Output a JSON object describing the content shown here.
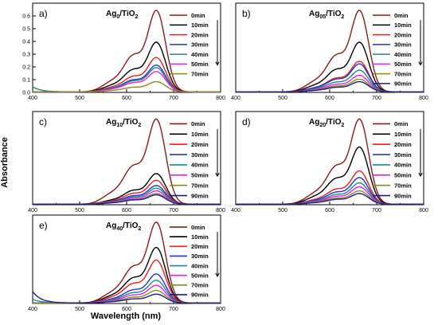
{
  "figure": {
    "ylabel": "Absorbance",
    "xlabel": "Wavelength (nm)"
  },
  "colors": {
    "0min": "#8b1a1a",
    "10min": "#000000",
    "20min": "#e8201e",
    "30min": "#1d33d4",
    "40min": "#1c8a8a",
    "50min": "#e81ef0",
    "70min": "#8a8a1a",
    "90min": "#1c1c8a"
  },
  "chart_data": [
    {
      "id": "a",
      "type": "line",
      "panel_label": "a)",
      "title_main": "Ag",
      "title_sub": "0",
      "title_rest": "/TiO",
      "title_sub2": "2",
      "xlim": [
        400,
        800
      ],
      "ylim": [
        0,
        0.7
      ],
      "xticks": [
        "400",
        "500",
        "600",
        "700",
        "800"
      ],
      "yticks": [
        "0.0",
        "0.1",
        "0.2",
        "0.3",
        "0.4",
        "0.5",
        "0.6"
      ],
      "legend_arrow": true,
      "series": [
        {
          "name": "0min",
          "peak": 0.64,
          "uv": 0.0
        },
        {
          "name": "10min",
          "peak": 0.39,
          "uv": 0.0
        },
        {
          "name": "20min",
          "peak": 0.27,
          "uv": 0.0
        },
        {
          "name": "30min",
          "peak": 0.21,
          "uv": 0.0
        },
        {
          "name": "40min",
          "peak": 0.19,
          "uv": 0.04
        },
        {
          "name": "50min",
          "peak": 0.16,
          "uv": 0.0
        },
        {
          "name": "70min",
          "peak": 0.08,
          "uv": 0.0
        }
      ]
    },
    {
      "id": "b",
      "type": "line",
      "panel_label": "b)",
      "title_main": "Ag",
      "title_sub": "05",
      "title_rest": "/TiO",
      "title_sub2": "2",
      "xlim": [
        400,
        800
      ],
      "ylim": [
        0,
        0.7
      ],
      "xticks": [
        "400",
        "500",
        "600",
        "700",
        "800"
      ],
      "yticks": [],
      "legend_arrow": true,
      "series": [
        {
          "name": "0min",
          "peak": 0.64,
          "uv": 0.0
        },
        {
          "name": "10min",
          "peak": 0.39,
          "uv": 0.0
        },
        {
          "name": "20min",
          "peak": 0.24,
          "uv": 0.0
        },
        {
          "name": "30min",
          "peak": 0.22,
          "uv": 0.0
        },
        {
          "name": "40min",
          "peak": 0.17,
          "uv": 0.0
        },
        {
          "name": "50min",
          "peak": 0.13,
          "uv": 0.0
        },
        {
          "name": "70min",
          "peak": 0.1,
          "uv": 0.0
        },
        {
          "name": "90min",
          "peak": 0.08,
          "uv": 0.0
        }
      ]
    },
    {
      "id": "c",
      "type": "line",
      "panel_label": "c)",
      "title_main": "Ag",
      "title_sub": "10",
      "title_rest": "/TiO",
      "title_sub2": "2",
      "xlim": [
        400,
        800
      ],
      "ylim": [
        0,
        0.7
      ],
      "xticks": [
        "400",
        "500",
        "600",
        "700",
        "800"
      ],
      "yticks": [],
      "legend_arrow": true,
      "series": [
        {
          "name": "0min",
          "peak": 0.64,
          "uv": 0.0
        },
        {
          "name": "10min",
          "peak": 0.23,
          "uv": 0.0
        },
        {
          "name": "20min",
          "peak": 0.18,
          "uv": 0.0
        },
        {
          "name": "30min",
          "peak": 0.14,
          "uv": 0.0
        },
        {
          "name": "40min",
          "peak": 0.12,
          "uv": 0.0
        },
        {
          "name": "50min",
          "peak": 0.1,
          "uv": 0.0
        },
        {
          "name": "70min",
          "peak": 0.08,
          "uv": 0.0
        },
        {
          "name": "90min",
          "peak": 0.07,
          "uv": 0.0
        }
      ]
    },
    {
      "id": "d",
      "type": "line",
      "panel_label": "d)",
      "title_main": "Ag",
      "title_sub": "20",
      "title_rest": "/TiO",
      "title_sub2": "2",
      "xlim": [
        400,
        800
      ],
      "ylim": [
        0,
        0.7
      ],
      "xticks": [
        "400",
        "500",
        "600",
        "700",
        "800"
      ],
      "yticks": [],
      "legend_arrow": true,
      "series": [
        {
          "name": "0min",
          "peak": 0.64,
          "uv": 0.0
        },
        {
          "name": "10min",
          "peak": 0.43,
          "uv": 0.0
        },
        {
          "name": "20min",
          "peak": 0.25,
          "uv": 0.0
        },
        {
          "name": "30min",
          "peak": 0.2,
          "uv": 0.0
        },
        {
          "name": "40min",
          "peak": 0.16,
          "uv": 0.0
        },
        {
          "name": "50min",
          "peak": 0.13,
          "uv": 0.0
        },
        {
          "name": "70min",
          "peak": 0.1,
          "uv": 0.0
        },
        {
          "name": "90min",
          "peak": 0.08,
          "uv": 0.0
        }
      ]
    },
    {
      "id": "e",
      "type": "line",
      "panel_label": "e)",
      "title_main": "Ag",
      "title_sub": "40",
      "title_rest": "/TiO",
      "title_sub2": "2",
      "xlim": [
        400,
        800
      ],
      "ylim": [
        0,
        0.7
      ],
      "xticks": [
        "400",
        "500",
        "600",
        "700",
        "800"
      ],
      "yticks": [],
      "legend_arrow": true,
      "series": [
        {
          "name": "0min",
          "peak": 0.64,
          "uv": 0.0
        },
        {
          "name": "10min",
          "peak": 0.44,
          "uv": 0.0
        },
        {
          "name": "20min",
          "peak": 0.34,
          "uv": 0.0
        },
        {
          "name": "30min",
          "peak": 0.23,
          "uv": 0.0
        },
        {
          "name": "40min",
          "peak": 0.18,
          "uv": 0.03
        },
        {
          "name": "50min",
          "peak": 0.14,
          "uv": 0.0
        },
        {
          "name": "70min",
          "peak": 0.1,
          "uv": 0.0
        },
        {
          "name": "90min",
          "peak": 0.07,
          "uv": 0.09
        }
      ]
    }
  ]
}
